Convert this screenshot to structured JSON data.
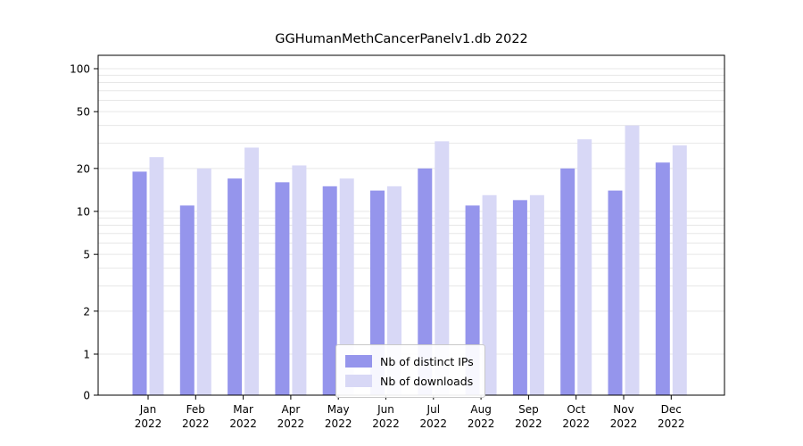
{
  "chart_data": {
    "type": "bar",
    "title": "GGHumanMethCancerPanelv1.db 2022",
    "categories": [
      "Jan",
      "Feb",
      "Mar",
      "Apr",
      "May",
      "Jun",
      "Jul",
      "Aug",
      "Sep",
      "Oct",
      "Nov",
      "Dec"
    ],
    "year": "2022",
    "yscale": "symlog",
    "ylim": [
      0,
      100
    ],
    "yticks": [
      0,
      1,
      2,
      5,
      10,
      20,
      50,
      100
    ],
    "grid": "horizontal-log-minor",
    "legend_position": "bottom-center",
    "series": [
      {
        "name": "Nb of distinct IPs",
        "color": "#9595ec",
        "values": [
          19,
          11,
          17,
          16,
          15,
          14,
          20,
          11,
          12,
          20,
          14,
          22
        ]
      },
      {
        "name": "Nb of downloads",
        "color": "#d8d8f6",
        "values": [
          24,
          20,
          28,
          21,
          17,
          15,
          31,
          13,
          13,
          32,
          40,
          29
        ]
      }
    ]
  }
}
